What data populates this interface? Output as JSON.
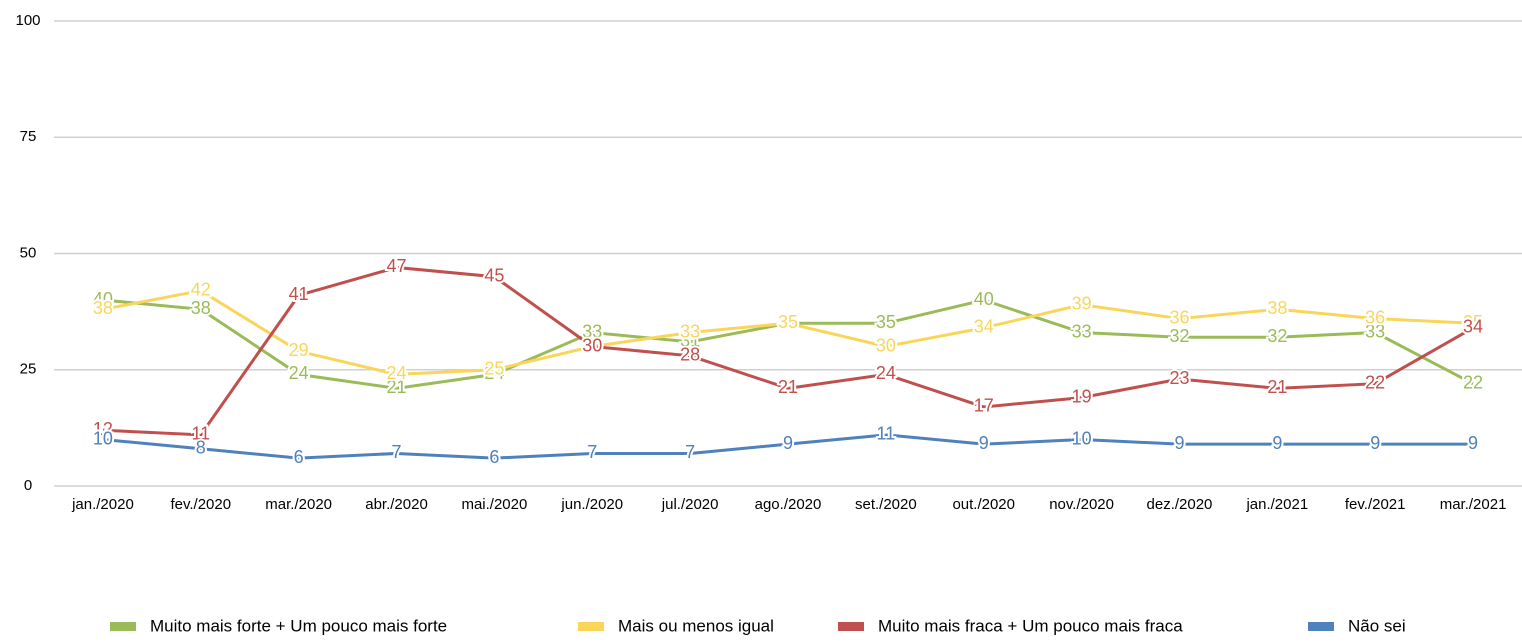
{
  "chart_data": {
    "type": "line",
    "categories": [
      "jan./2020",
      "fev./2020",
      "mar./2020",
      "abr./2020",
      "mai./2020",
      "jun./2020",
      "jul./2020",
      "ago./2020",
      "set./2020",
      "out./2020",
      "nov./2020",
      "dez./2020",
      "jan./2021",
      "fev./2021",
      "mar./2021"
    ],
    "series": [
      {
        "name": "Muito mais forte + Um pouco mais forte",
        "color": "#9bbb59",
        "values": [
          40,
          38,
          24,
          21,
          24,
          33,
          31,
          35,
          35,
          40,
          33,
          32,
          32,
          33,
          22
        ]
      },
      {
        "name": "Mais ou menos igual",
        "color": "#f9d65b",
        "values": [
          38,
          42,
          29,
          24,
          25,
          30,
          33,
          35,
          30,
          34,
          39,
          36,
          38,
          36,
          35
        ]
      },
      {
        "name": "Muito mais fraca + Um pouco mais fraca",
        "color": "#c0504d",
        "values": [
          12,
          11,
          41,
          47,
          45,
          30,
          28,
          21,
          24,
          17,
          19,
          23,
          21,
          22,
          34
        ]
      },
      {
        "name": "Não sei",
        "color": "#4f81bd",
        "values": [
          10,
          8,
          6,
          7,
          6,
          7,
          7,
          9,
          11,
          9,
          10,
          9,
          9,
          9,
          9
        ]
      }
    ],
    "ylim": [
      0,
      100
    ],
    "yticks": [
      0,
      25,
      50,
      75,
      100
    ],
    "grid": true,
    "legend": "bottom"
  }
}
